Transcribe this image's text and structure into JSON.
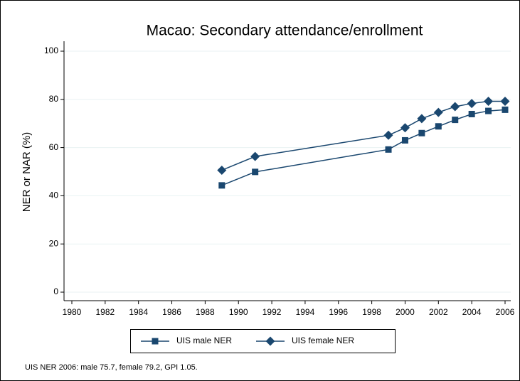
{
  "chart_data": {
    "type": "line",
    "title": "Macao: Secondary attendance/enrollment",
    "y_label": "NER or NAR (%)",
    "note": "UIS NER 2006: male 75.7, female 79.2, GPI 1.05.",
    "xlim": [
      1980,
      2006
    ],
    "xticks": [
      1980,
      1982,
      1984,
      1986,
      1988,
      1990,
      1992,
      1994,
      1996,
      1998,
      2000,
      2002,
      2004,
      2006
    ],
    "ylim": [
      0,
      100
    ],
    "yticks": [
      0,
      20,
      40,
      60,
      80,
      100
    ],
    "grid": true,
    "legend": "bottom",
    "series": [
      {
        "name": "UIS male NER",
        "color": "#1a476f",
        "marker": "square",
        "x": [
          1989,
          1991,
          1999,
          2000,
          2001,
          2002,
          2003,
          2004,
          2005,
          2006
        ],
        "values": [
          44.3,
          49.9,
          59.2,
          63.0,
          66.0,
          68.8,
          71.5,
          73.9,
          75.2,
          75.7
        ]
      },
      {
        "name": "UIS female NER",
        "color": "#1a476f",
        "marker": "diamond",
        "x": [
          1989,
          1991,
          1999,
          2000,
          2001,
          2002,
          2003,
          2004,
          2005,
          2006
        ],
        "values": [
          50.6,
          56.3,
          65.1,
          68.2,
          72.0,
          74.6,
          77.0,
          78.3,
          79.2,
          79.2
        ]
      }
    ]
  }
}
